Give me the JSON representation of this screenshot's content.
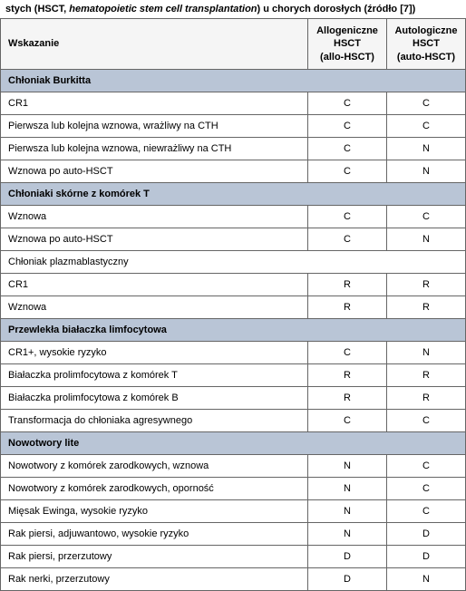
{
  "title_pre": "stych (HSCT, ",
  "title_italic": "hematopoietic stem cell transplantation",
  "title_post": ") u chorych dorosłych (źródło [7])",
  "header": {
    "col1": "Wskazanie",
    "col2_line1": "Allogeniczne",
    "col2_line2": "HSCT",
    "col2_line3": "(allo-HSCT)",
    "col3_line1": "Autologiczne",
    "col3_line2": "HSCT",
    "col3_line3": "(auto-HSCT)"
  },
  "sections": [
    {
      "title": "Chłoniak Burkitta",
      "rows": [
        {
          "name": "CR1",
          "allo": "C",
          "auto": "C"
        },
        {
          "name": "Pierwsza lub kolejna wznowa, wrażliwy na CTH",
          "allo": "C",
          "auto": "C"
        },
        {
          "name": "Pierwsza lub kolejna wznowa, niewrażliwy na CTH",
          "allo": "C",
          "auto": "N"
        },
        {
          "name": "Wznowa po auto-HSCT",
          "allo": "C",
          "auto": "N"
        }
      ]
    },
    {
      "title": "Chłoniaki skórne z komórek T",
      "rows": [
        {
          "name": "Wznowa",
          "allo": "C",
          "auto": "C"
        },
        {
          "name": "Wznowa po auto-HSCT",
          "allo": "C",
          "auto": "N"
        }
      ],
      "subtitle": "Chłoniak plazmablastyczny",
      "subrows": [
        {
          "name": "CR1",
          "allo": "R",
          "auto": "R"
        },
        {
          "name": "Wznowa",
          "allo": "R",
          "auto": "R"
        }
      ]
    },
    {
      "title": "Przewlekła białaczka limfocytowa",
      "rows": [
        {
          "name": "CR1+, wysokie ryzyko",
          "allo": "C",
          "auto": "N"
        },
        {
          "name": "Białaczka prolimfocytowa z komórek T",
          "allo": "R",
          "auto": "R"
        },
        {
          "name": "Białaczka prolimfocytowa z komórek B",
          "allo": "R",
          "auto": "R"
        },
        {
          "name": "Transformacja do chłoniaka agresywnego",
          "allo": "C",
          "auto": "C"
        }
      ]
    },
    {
      "title": "Nowotwory lite",
      "rows": [
        {
          "name": "Nowotwory z komórek zarodkowych, wznowa",
          "allo": "N",
          "auto": "C"
        },
        {
          "name": "Nowotwory z komórek zarodkowych, oporność",
          "allo": "N",
          "auto": "C"
        },
        {
          "name": "Mięsak Ewinga, wysokie ryzyko",
          "allo": "N",
          "auto": "C"
        },
        {
          "name": "Rak piersi, adjuwantowo, wysokie ryzyko",
          "allo": "N",
          "auto": "D"
        },
        {
          "name": "Rak piersi, przerzutowy",
          "allo": "D",
          "auto": "D"
        },
        {
          "name": "Rak nerki, przerzutowy",
          "allo": "D",
          "auto": "N"
        }
      ]
    }
  ]
}
